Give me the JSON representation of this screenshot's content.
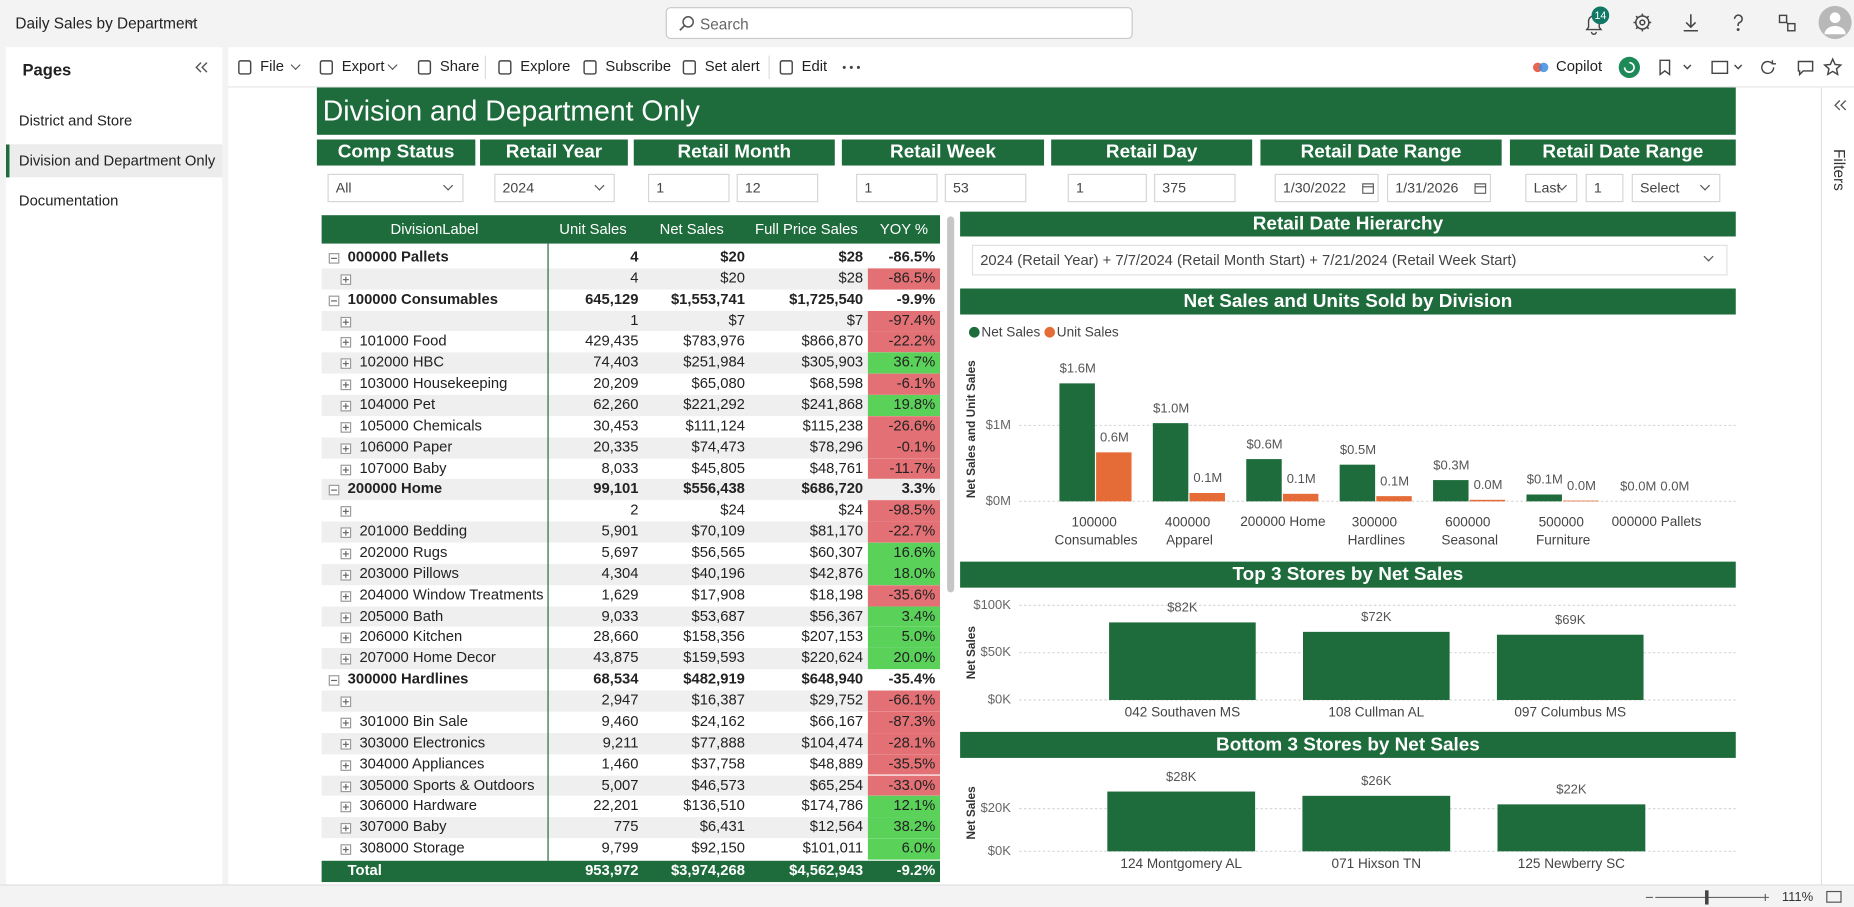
{
  "header": {
    "report_name": "Daily Sales by Department",
    "search_placeholder": "Search",
    "notification_count": "14"
  },
  "pages_pane": {
    "title": "Pages",
    "pages": [
      "District and Store",
      "Division and Department Only",
      "Documentation"
    ],
    "active": 1
  },
  "toolbar": {
    "left": [
      "File",
      "Export",
      "Share",
      "Explore",
      "Subscribe",
      "Set alert",
      "Edit"
    ],
    "right": [
      "Copilot"
    ]
  },
  "filters_pane": "Filters",
  "zoom": "111%",
  "report": {
    "title": "Division and Department Only",
    "slicers": [
      {
        "label": "Comp Status",
        "values": [
          "All"
        ]
      },
      {
        "label": "Retail Year",
        "values": [
          "2024"
        ]
      },
      {
        "label": "Retail Month",
        "values": [
          "1",
          "12"
        ]
      },
      {
        "label": "Retail Week",
        "values": [
          "1",
          "53"
        ]
      },
      {
        "label": "Retail Day",
        "values": [
          "1",
          "375"
        ]
      },
      {
        "label": "Retail Date Range",
        "values": [
          "1/30/2022",
          "1/31/2026"
        ]
      },
      {
        "label": "Retail Date Range",
        "values": [
          "Last",
          "1",
          "Select"
        ]
      }
    ],
    "hierarchy": {
      "label": "Retail Date Hierarchy",
      "value": "2024 (Retail Year) + 7/7/2024 (Retail Month Start) + 7/21/2024 (Retail Week Start)"
    },
    "table": {
      "columns": [
        "DivisionLabel",
        "Unit Sales",
        "Net Sales",
        "Full Price Sales",
        "YOY %"
      ],
      "groups": [
        {
          "row": [
            "000000 Pallets",
            "4",
            "$20",
            "$28",
            "-86.5%"
          ],
          "children": [
            [
              null,
              "4",
              "$20",
              "$28",
              "-86.5%"
            ]
          ]
        },
        {
          "row": [
            "100000 Consumables",
            "645,129",
            "$1,553,741",
            "$1,725,540",
            "-9.9%"
          ],
          "children": [
            [
              null,
              "1",
              "$7",
              "$7",
              "-97.4%"
            ],
            [
              "101000 Food",
              "429,435",
              "$783,976",
              "$866,870",
              "-22.2%"
            ],
            [
              "102000 HBC",
              "74,403",
              "$251,984",
              "$305,903",
              "36.7%"
            ],
            [
              "103000 Housekeeping",
              "20,209",
              "$65,080",
              "$68,598",
              "-6.1%"
            ],
            [
              "104000 Pet",
              "62,260",
              "$221,292",
              "$241,868",
              "19.8%"
            ],
            [
              "105000 Chemicals",
              "30,453",
              "$111,124",
              "$115,238",
              "-26.6%"
            ],
            [
              "106000 Paper",
              "20,335",
              "$74,473",
              "$78,296",
              "-0.1%"
            ],
            [
              "107000 Baby",
              "8,033",
              "$45,805",
              "$48,761",
              "-11.7%"
            ]
          ]
        },
        {
          "row": [
            "200000 Home",
            "99,101",
            "$556,438",
            "$686,720",
            "3.3%"
          ],
          "children": [
            [
              null,
              "2",
              "$24",
              "$24",
              "-98.5%"
            ],
            [
              "201000 Bedding",
              "5,901",
              "$70,109",
              "$81,170",
              "-22.7%"
            ],
            [
              "202000 Rugs",
              "5,697",
              "$56,565",
              "$60,307",
              "16.6%"
            ],
            [
              "203000 Pillows",
              "4,304",
              "$40,196",
              "$42,876",
              "18.0%"
            ],
            [
              "204000 Window Treatments",
              "1,629",
              "$17,908",
              "$18,198",
              "-35.6%"
            ],
            [
              "205000 Bath",
              "9,033",
              "$53,687",
              "$56,367",
              "3.4%"
            ],
            [
              "206000 Kitchen",
              "28,660",
              "$158,356",
              "$207,153",
              "5.0%"
            ],
            [
              "207000 Home Decor",
              "43,875",
              "$159,593",
              "$220,624",
              "20.0%"
            ]
          ]
        },
        {
          "row": [
            "300000 Hardlines",
            "68,534",
            "$482,919",
            "$648,940",
            "-35.4%"
          ],
          "children": [
            [
              null,
              "2,947",
              "$16,387",
              "$29,752",
              "-66.1%"
            ],
            [
              "301000 Bin Sale",
              "9,460",
              "$24,162",
              "$66,167",
              "-87.3%"
            ],
            [
              "303000 Electronics",
              "9,211",
              "$77,888",
              "$104,474",
              "-28.1%"
            ],
            [
              "304000 Appliances",
              "1,460",
              "$37,758",
              "$48,889",
              "-35.5%"
            ],
            [
              "305000 Sports & Outdoors",
              "5,007",
              "$46,573",
              "$65,254",
              "-33.0%"
            ],
            [
              "306000 Hardware",
              "22,201",
              "$136,510",
              "$174,786",
              "12.1%"
            ],
            [
              "307000 Baby",
              "775",
              "$6,431",
              "$12,564",
              "38.2%"
            ],
            [
              "308000 Storage",
              "9,799",
              "$92,150",
              "$101,011",
              "6.0%"
            ]
          ]
        }
      ],
      "total": [
        "Total",
        "953,972",
        "$3,974,268",
        "$4,562,943",
        "-9.2%"
      ]
    }
  },
  "chart_data": [
    {
      "type": "bar",
      "title": "Net Sales and Units Sold by Division",
      "y_label": "Net Sales and Unit Sales",
      "categories": [
        "100000 Consumables",
        "400000 Apparel",
        "200000 Home",
        "300000 Hardlines",
        "600000 Seasonal",
        "500000 Furniture",
        "000000 Pallets"
      ],
      "series": [
        {
          "name": "Net Sales",
          "color": "#1e6b3c",
          "values": [
            1553741,
            1030000,
            556438,
            482919,
            280000,
            90000,
            20
          ],
          "value_labels": [
            "$1.6M",
            "$1.0M",
            "$0.6M",
            "$0.5M",
            "$0.3M",
            "$0.1M",
            "$0.0M"
          ]
        },
        {
          "name": "Unit Sales",
          "color": "#e66c37",
          "values": [
            645129,
            110000,
            99101,
            68534,
            20000,
            10000,
            4
          ],
          "value_labels": [
            "0.6M",
            "0.1M",
            "0.1M",
            "0.1M",
            "0.0M",
            "0.0M",
            "0.0M"
          ]
        }
      ],
      "ylim": [
        0,
        1900000
      ],
      "yticks": [
        {
          "value": 0,
          "label": "$0M"
        },
        {
          "value": 1000000,
          "label": "$1M"
        }
      ],
      "grid": true,
      "legend": "top-left"
    },
    {
      "type": "bar",
      "title": "Top 3 Stores by Net Sales",
      "y_label": "Net Sales",
      "categories": [
        "042 Southaven MS",
        "108 Cullman AL",
        "097 Columbus MS"
      ],
      "values": [
        82000,
        72000,
        69000
      ],
      "value_labels": [
        "$82K",
        "$72K",
        "$69K"
      ],
      "color": "#1e6b3c",
      "ylim": [
        0,
        100000
      ],
      "yticks": [
        {
          "value": 0,
          "label": "$0K"
        },
        {
          "value": 50000,
          "label": "$50K"
        },
        {
          "value": 100000,
          "label": "$100K"
        }
      ],
      "grid": true
    },
    {
      "type": "bar",
      "title": "Bottom 3 Stores by Net Sales",
      "y_label": "Net Sales",
      "categories": [
        "124 Montgomery AL",
        "071 Hixson TN",
        "125 Newberry SC"
      ],
      "values": [
        28000,
        26000,
        22000
      ],
      "value_labels": [
        "$28K",
        "$26K",
        "$22K"
      ],
      "color": "#1e6b3c",
      "ylim": [
        0,
        36000
      ],
      "yticks": [
        {
          "value": 0,
          "label": "$0K"
        },
        {
          "value": 20000,
          "label": "$20K"
        }
      ],
      "grid": true
    }
  ]
}
